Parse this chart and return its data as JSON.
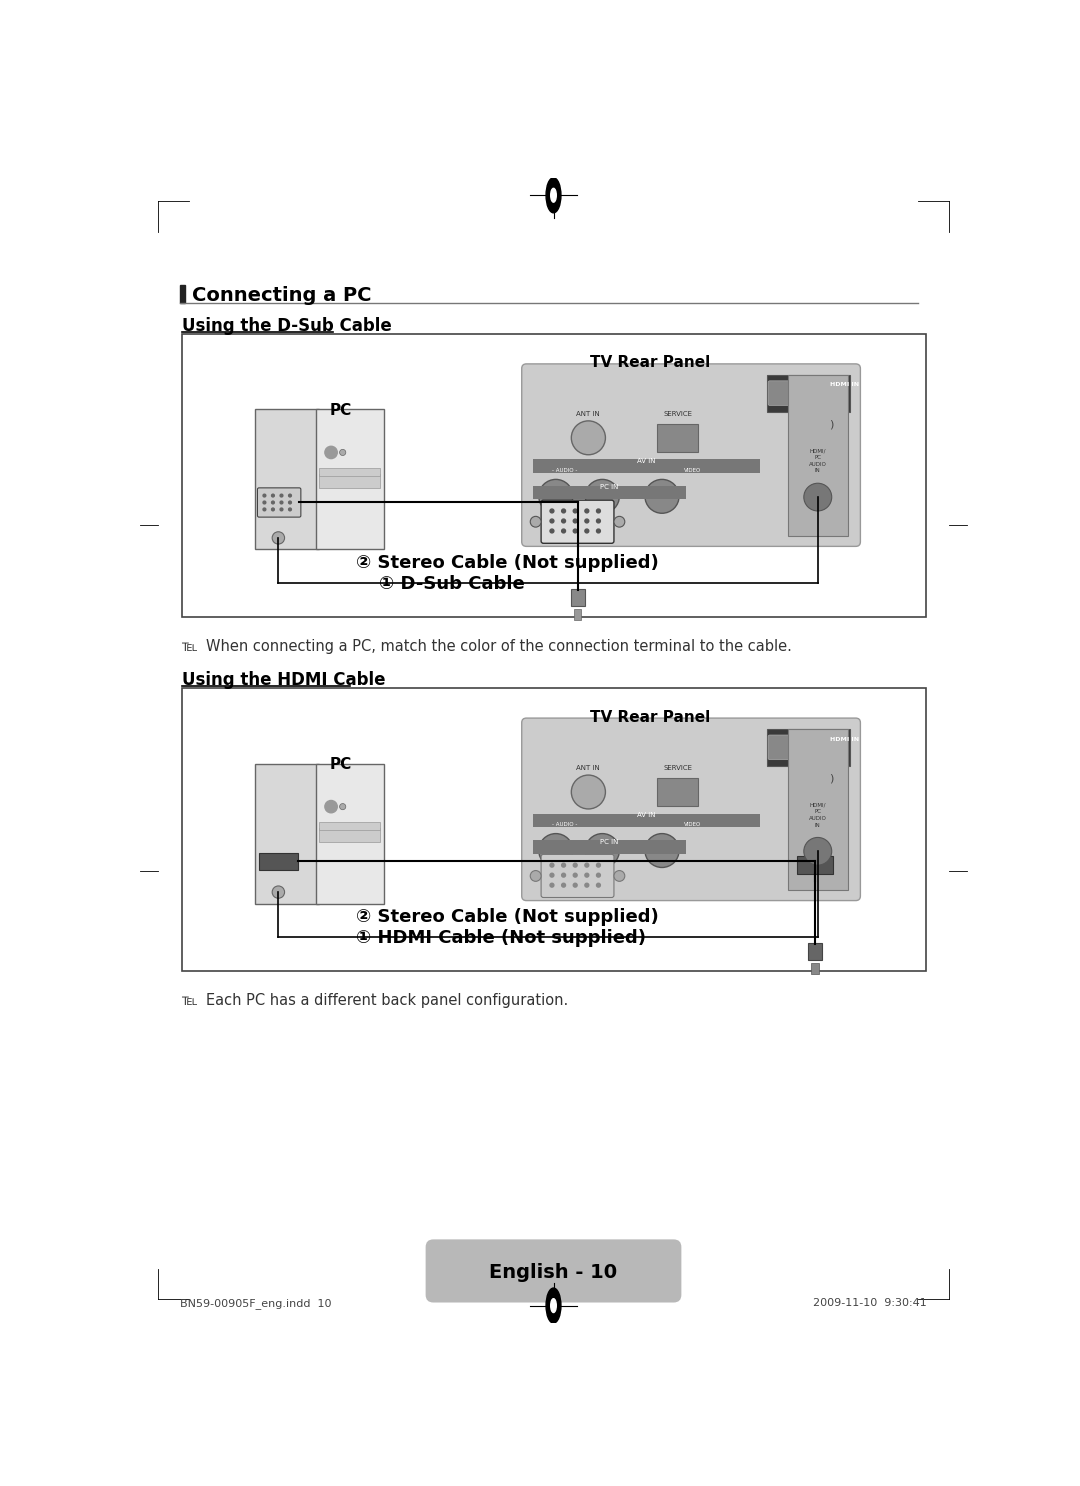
{
  "bg_color": "#ffffff",
  "title_section": "Connecting a PC",
  "subtitle1": "Using the D-Sub Cable",
  "subtitle2": "Using the HDMI Cable",
  "tv_rear_panel": "TV Rear Panel",
  "pc_label": "PC",
  "label1_dsub": "① D-Sub Cable",
  "label2_dsub": "② Stereo Cable (Not supplied)",
  "label1_hdmi": "① HDMI Cable (Not supplied)",
  "label2_hdmi": "② Stereo Cable (Not supplied)",
  "note1": "℡  When connecting a PC, match the color of the connection terminal to the cable.",
  "note2": "℡  Each PC has a different back panel configuration.",
  "footer_text": "English - 10",
  "footer_left": "BN59-00905F_eng.indd  10",
  "footer_right": "2009-11-10  9:30:41"
}
